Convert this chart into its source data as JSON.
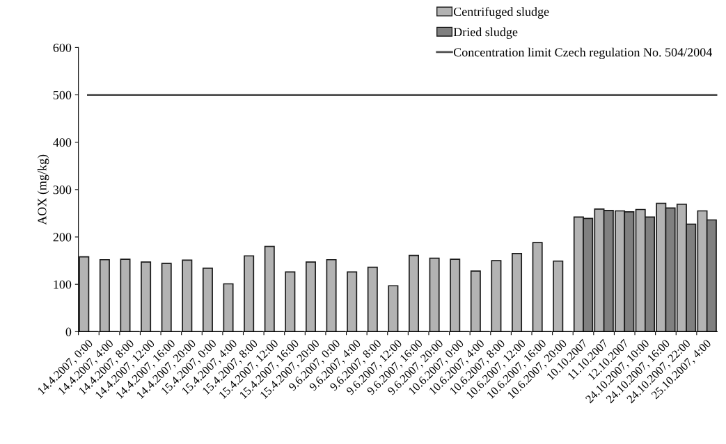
{
  "chart_data": {
    "type": "bar",
    "ylabel": "AOX (mg/kg)",
    "categories": [
      "14.4.2007, 0:00",
      "14.4.2007, 4:00",
      "14.4.2007, 8:00",
      "14.4.2007, 12:00",
      "14.4.2007, 16:00",
      "14.4.2007, 20:00",
      "15.4.2007, 0:00",
      "15.4.2007, 4:00",
      "15.4.2007, 8:00",
      "15.4.2007, 12:00",
      "15.4.2007, 16:00",
      "15.4.2007, 20:00",
      "9.6.2007, 0:00",
      "9.6.2007, 4:00",
      "9.6.2007, 8:00",
      "9.6.2007, 12:00",
      "9.6.2007, 16:00",
      "9.6.2007, 20:00",
      "10.6.2007, 0:00",
      "10.6.2007, 4:00",
      "10.6.2007, 8:00",
      "10.6.2007, 12:00",
      "10.6.2007, 16:00",
      "10.6.2007, 20:00",
      "10.10.2007",
      "11.10.2007",
      "12.10.2007",
      "24.10.2007, 10:00",
      "24.10.2007, 16:00",
      "24.10.2007, 22:00",
      "25.10.2007, 4:00"
    ],
    "series": [
      {
        "name": "Centrifuged sludge",
        "color": "#b3b3b3",
        "values": [
          158,
          152,
          153,
          147,
          144,
          151,
          134,
          101,
          160,
          180,
          126,
          147,
          152,
          126,
          136,
          97,
          161,
          155,
          153,
          128,
          150,
          165,
          188,
          149,
          242,
          259,
          255,
          258,
          271,
          269,
          255
        ]
      },
      {
        "name": "Dried sludge",
        "color": "#808080",
        "values": [
          null,
          null,
          null,
          null,
          null,
          null,
          null,
          null,
          null,
          null,
          null,
          null,
          null,
          null,
          null,
          null,
          null,
          null,
          null,
          null,
          null,
          null,
          null,
          null,
          239,
          256,
          253,
          242,
          261,
          227,
          236
        ]
      }
    ],
    "ylim": [
      0,
      600
    ],
    "yticks": [
      0,
      100,
      200,
      300,
      400,
      500,
      600
    ],
    "ref_lines": [
      {
        "axis": "y",
        "value": 500,
        "label": "Concentration limit Czech regulation No. 504/2004",
        "color": "#4d4d4d"
      }
    ],
    "grid": false,
    "legend": "top right"
  }
}
